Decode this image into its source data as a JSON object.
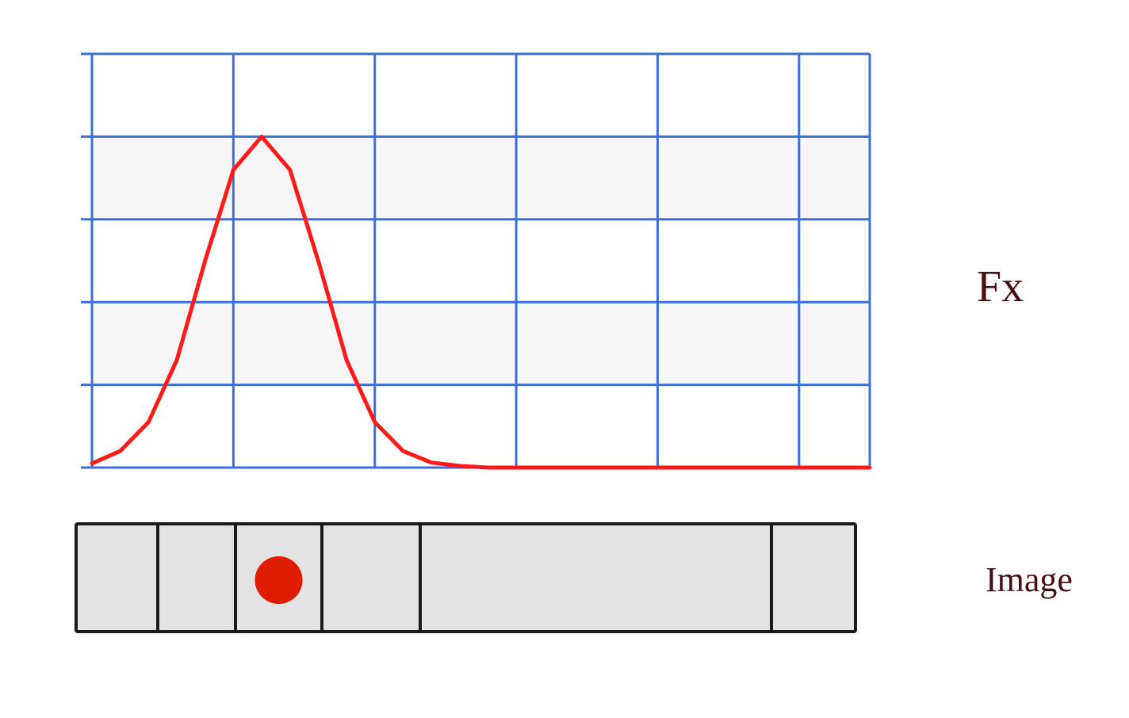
{
  "labels": {
    "fx": "Fx",
    "image": "Image"
  },
  "colors": {
    "grid_line": "#3d6fd6",
    "band_fill": "#f6f6f6",
    "curve": "#ff1a1a",
    "strip_fill": "#e3e3e3",
    "strip_outline": "#1a1a1a",
    "dot": "#e01c00",
    "label_text": "#4a0f12"
  },
  "chart_data": {
    "type": "line",
    "x": [
      0,
      0.2,
      0.4,
      0.6,
      0.8,
      1.0,
      1.2,
      1.4,
      1.6,
      1.8,
      2.0,
      2.2,
      2.4,
      2.6,
      2.8,
      3.0,
      3.5,
      4.0,
      4.5,
      5.0,
      5.5
    ],
    "y": [
      0.05,
      0.2,
      0.55,
      1.3,
      2.5,
      3.6,
      4.0,
      3.6,
      2.5,
      1.3,
      0.55,
      0.2,
      0.06,
      0.02,
      0,
      0,
      0,
      0,
      0,
      0,
      0
    ],
    "xlim": [
      0,
      5.5
    ],
    "ylim": [
      0,
      5
    ],
    "grid": true
  },
  "image_strip": {
    "cell_count": 6,
    "marked_cell": 3
  }
}
